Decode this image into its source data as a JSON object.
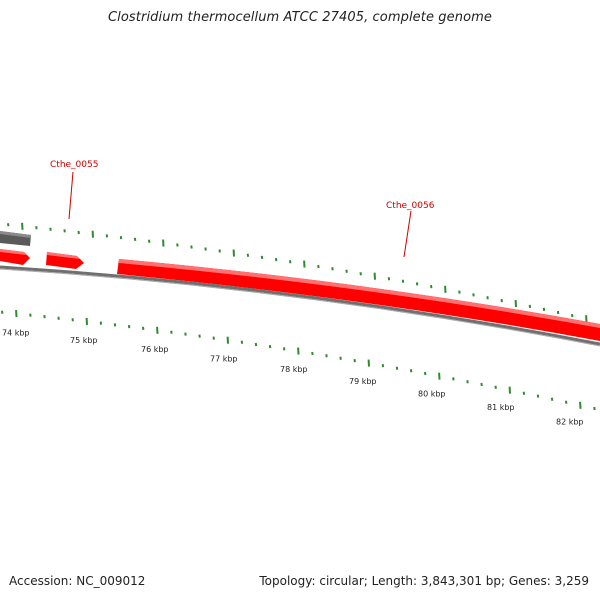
{
  "header": {
    "title": "Clostridium thermocellum ATCC 27405, complete genome"
  },
  "footer": {
    "accession": "Accession: NC_009012",
    "summary": "Topology: circular; Length: 3,843,301 bp; Genes: 3,259"
  },
  "colors": {
    "gene_fill": "#ff0000",
    "gene_highlight": "#ff6a6a",
    "gene_label": "#cc0000",
    "other_gene": "#555555",
    "backbone": "#777777",
    "tick": "#2e8b2e",
    "text": "#222222"
  },
  "genes": [
    {
      "label": "Cthe_0055",
      "strand": "+"
    },
    {
      "label": "Cthe_0056",
      "strand": "+"
    }
  ],
  "scale_labels": [
    "74 kbp",
    "75 kbp",
    "76 kbp",
    "77 kbp",
    "78 kbp",
    "79 kbp",
    "80 kbp",
    "81 kbp",
    "82 kbp"
  ]
}
